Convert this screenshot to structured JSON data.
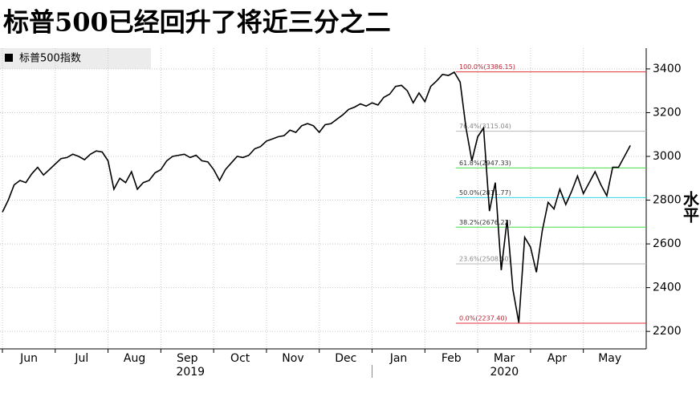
{
  "chart_data": {
    "type": "line",
    "title": "标普500已经回升了将近三分之二",
    "y_axis_label": "水平",
    "categories": [
      "Jun",
      null,
      null,
      null,
      null,
      null,
      null,
      null,
      null,
      "Jul",
      null,
      null,
      null,
      null,
      null,
      null,
      null,
      null,
      "Aug",
      null,
      null,
      null,
      null,
      null,
      null,
      null,
      null,
      "Sep",
      null,
      null,
      null,
      null,
      null,
      null,
      null,
      null,
      "Oct",
      null,
      null,
      null,
      null,
      null,
      null,
      null,
      null,
      "Nov",
      null,
      null,
      null,
      null,
      null,
      null,
      null,
      null,
      "Dec",
      null,
      null,
      null,
      null,
      null,
      null,
      null,
      null,
      "Jan",
      null,
      null,
      null,
      null,
      null,
      null,
      null,
      null,
      "Feb",
      null,
      null,
      null,
      null,
      null,
      null,
      null,
      null,
      "Mar",
      null,
      null,
      null,
      null,
      null,
      null,
      null,
      null,
      "Apr",
      null,
      null,
      null,
      null,
      null,
      null,
      null,
      null,
      "May",
      null,
      null,
      null,
      null,
      null,
      null,
      null,
      null
    ],
    "x_groups": [
      {
        "label": "2019",
        "span": 63
      },
      {
        "label": "2020",
        "span": 45
      }
    ],
    "series": [
      {
        "name": "标普500指数",
        "color": "#000000",
        "values": [
          2745,
          2800,
          2870,
          2890,
          2880,
          2920,
          2950,
          2915,
          2940,
          2965,
          2990,
          2995,
          3010,
          3000,
          2985,
          3010,
          3025,
          3020,
          2980,
          2850,
          2900,
          2880,
          2930,
          2850,
          2880,
          2890,
          2925,
          2940,
          2980,
          3000,
          3005,
          3010,
          2995,
          3005,
          2980,
          2975,
          2940,
          2890,
          2940,
          2970,
          3000,
          2995,
          3005,
          3035,
          3045,
          3070,
          3080,
          3090,
          3095,
          3120,
          3110,
          3140,
          3150,
          3140,
          3110,
          3145,
          3150,
          3170,
          3190,
          3215,
          3225,
          3240,
          3230,
          3245,
          3235,
          3270,
          3285,
          3320,
          3325,
          3300,
          3245,
          3290,
          3250,
          3320,
          3345,
          3375,
          3370,
          3385,
          3340,
          3130,
          2980,
          3090,
          3130,
          2750,
          2880,
          2480,
          2710,
          2390,
          2240,
          2630,
          2585,
          2470,
          2660,
          2790,
          2760,
          2850,
          2780,
          2840,
          2910,
          2830,
          2880,
          2930,
          2870,
          2820,
          2950,
          2950,
          3000,
          3050
        ]
      }
    ],
    "levels": [
      {
        "label": "100.0%(3386.15)",
        "value": 3386.15,
        "color": "#e0303a"
      },
      {
        "label": "76.4%(3115.04)",
        "value": 3115.04,
        "color": "#b8b8b8"
      },
      {
        "label": "61.8%(2947.33)",
        "value": 2947.33,
        "color": "#44dd44"
      },
      {
        "label": "50.0%(2811.77)",
        "value": 2811.77,
        "color": "#33d6e6"
      },
      {
        "label": "38.2%(2676.22)",
        "value": 2676.22,
        "color": "#44dd44"
      },
      {
        "label": "23.6%(2508.50)",
        "value": 2508.5,
        "color": "#b8b8b8"
      },
      {
        "label": "0.0%(2237.40)",
        "value": 2237.4,
        "color": "#e0303a"
      }
    ],
    "ylim": [
      2120,
      3495
    ],
    "yticks": [
      2200,
      2400,
      2600,
      2800,
      3000,
      3200,
      3400
    ],
    "grid": true
  }
}
